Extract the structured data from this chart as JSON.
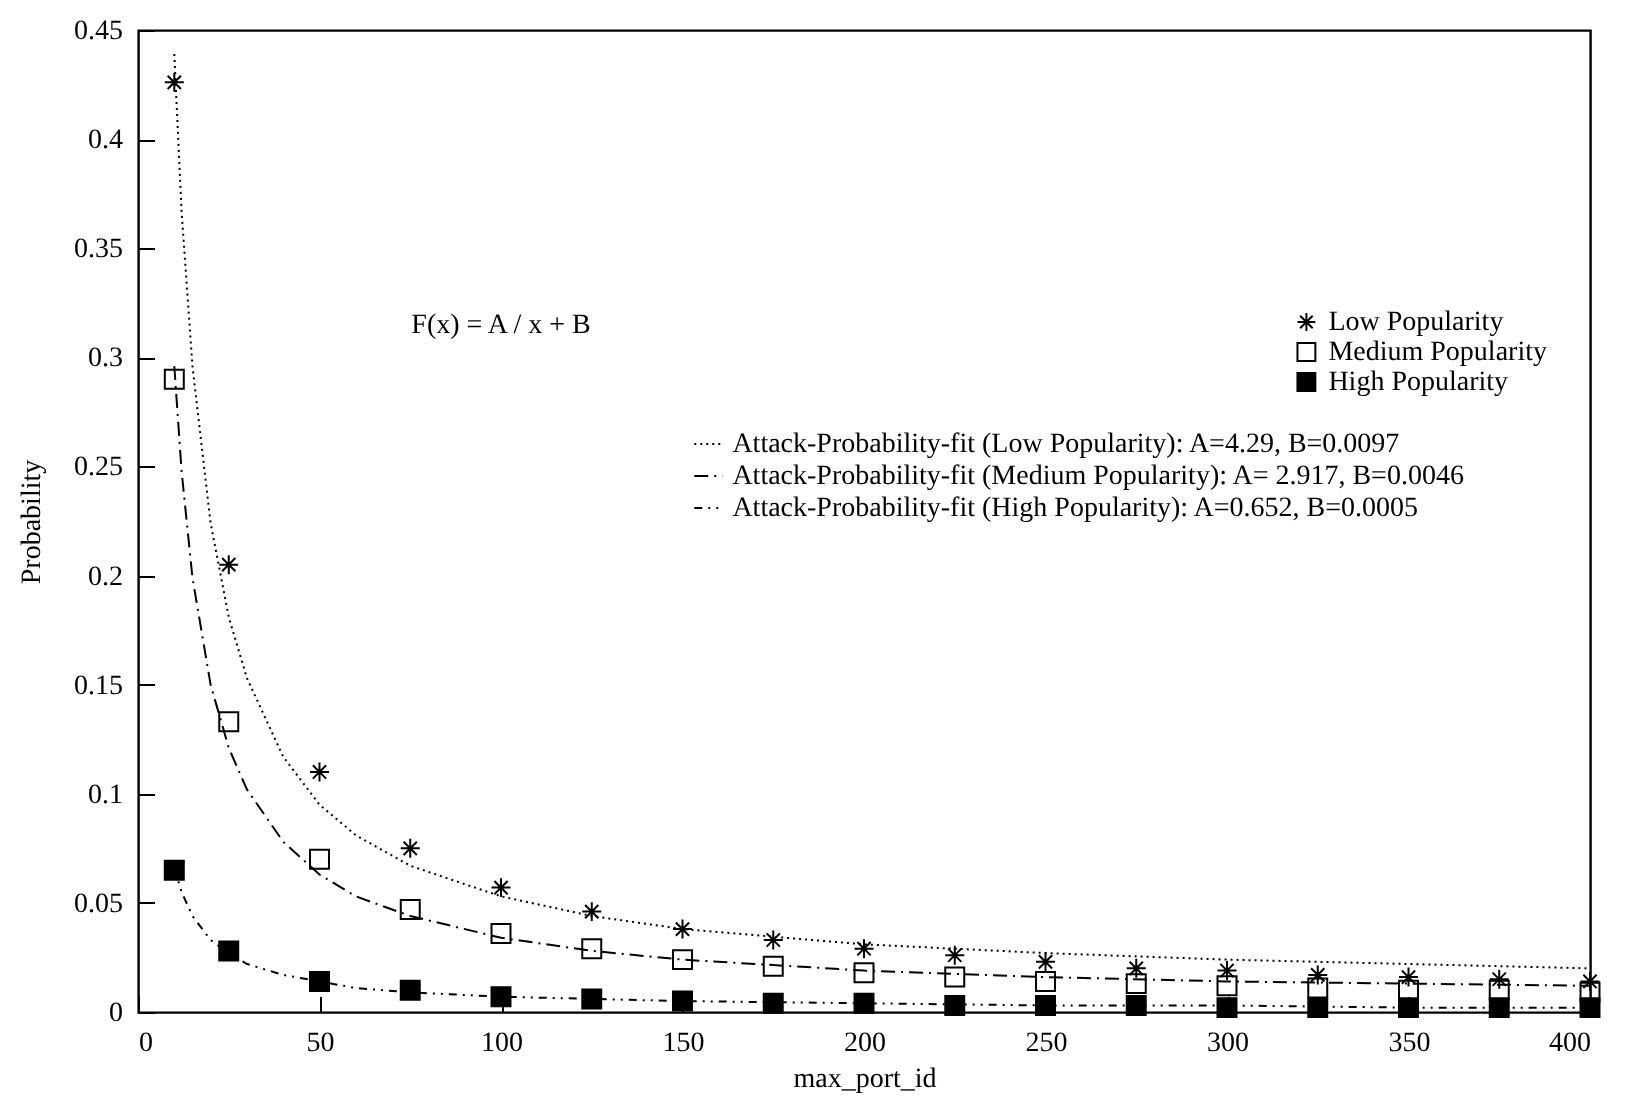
{
  "chart_data": {
    "type": "scatter",
    "xlabel": "max_port_id",
    "ylabel": "Probability",
    "annotations": [
      "F(x) = A / x + B"
    ],
    "xlim": [
      0,
      400
    ],
    "ylim": [
      0,
      0.45
    ],
    "xticks": [
      0,
      50,
      100,
      150,
      200,
      250,
      300,
      350,
      400
    ],
    "yticks": [
      0,
      0.05,
      0.1,
      0.15,
      0.2,
      0.25,
      0.3,
      0.35,
      0.4,
      0.45
    ],
    "grid": false,
    "legend": "top right",
    "series": [
      {
        "name": "Low Popularity",
        "type": "scatter",
        "marker": "cross",
        "color": "#000000",
        "x": [
          10,
          25,
          50,
          75,
          100,
          125,
          150,
          175,
          200,
          225,
          250,
          275,
          300,
          325,
          350,
          375,
          400
        ],
        "values": [
          0.426,
          0.205,
          0.11,
          0.075,
          0.057,
          0.046,
          0.038,
          0.033,
          0.029,
          0.026,
          0.023,
          0.02,
          0.019,
          0.017,
          0.016,
          0.015,
          0.014
        ]
      },
      {
        "name": "Medium Popularity",
        "type": "scatter",
        "marker": "square",
        "color": "#000000",
        "x": [
          10,
          25,
          50,
          75,
          100,
          125,
          150,
          175,
          200,
          225,
          250,
          275,
          300,
          325,
          350,
          375,
          400
        ],
        "values": [
          0.29,
          0.133,
          0.07,
          0.047,
          0.036,
          0.029,
          0.024,
          0.021,
          0.018,
          0.016,
          0.014,
          0.013,
          0.012,
          0.011,
          0.01,
          0.01,
          0.009
        ]
      },
      {
        "name": "High Popularity",
        "type": "scatter",
        "marker": "square",
        "color": "#000000",
        "x": [
          10,
          25,
          50,
          75,
          100,
          125,
          150,
          175,
          200,
          225,
          250,
          275,
          300,
          325,
          350,
          375,
          400
        ],
        "values": [
          0.065,
          0.028,
          0.014,
          0.01,
          0.007,
          0.006,
          0.005,
          0.004,
          0.004,
          0.003,
          0.003,
          0.003,
          0.002,
          0.002,
          0.002,
          0.002,
          0.002
        ]
      },
      {
        "name": "Attack-Probability-fit (Low Popularity): A=4.29, B=0.0097",
        "type": "line",
        "marker": "none",
        "line_style": "dotted",
        "color": "#000000",
        "x": [
          10,
          12,
          15,
          20,
          25,
          30,
          40,
          50,
          60,
          75,
          100,
          125,
          150,
          200,
          250,
          300,
          350,
          400
        ],
        "values": [
          0.439,
          0.367,
          0.296,
          0.224,
          0.181,
          0.153,
          0.117,
          0.095,
          0.081,
          0.067,
          0.053,
          0.044,
          0.038,
          0.031,
          0.027,
          0.024,
          0.022,
          0.02
        ]
      },
      {
        "name": "Attack-Probability-fit (Medium Popularity): A= 2.917, B=0.0046",
        "type": "line",
        "marker": "none",
        "line_style": "dashed",
        "color": "#000000",
        "x": [
          10,
          12,
          15,
          20,
          25,
          30,
          40,
          50,
          60,
          75,
          100,
          125,
          150,
          200,
          250,
          300,
          350,
          400
        ],
        "values": [
          0.296,
          0.248,
          0.199,
          0.15,
          0.121,
          0.102,
          0.078,
          0.063,
          0.053,
          0.044,
          0.034,
          0.028,
          0.024,
          0.019,
          0.016,
          0.014,
          0.013,
          0.012
        ]
      },
      {
        "name": "Attack-Probability-fit (High Popularity): A=0.652, B=0.0005",
        "type": "line",
        "marker": "none",
        "line_style": "dashed",
        "color": "#000000",
        "x": [
          10,
          12,
          15,
          20,
          25,
          30,
          40,
          50,
          60,
          75,
          100,
          125,
          150,
          200,
          250,
          300,
          350,
          400
        ],
        "values": [
          0.066,
          0.055,
          0.044,
          0.033,
          0.027,
          0.022,
          0.017,
          0.014,
          0.011,
          0.009,
          0.007,
          0.006,
          0.005,
          0.004,
          0.003,
          0.003,
          0.002,
          0.002
        ]
      }
    ]
  }
}
